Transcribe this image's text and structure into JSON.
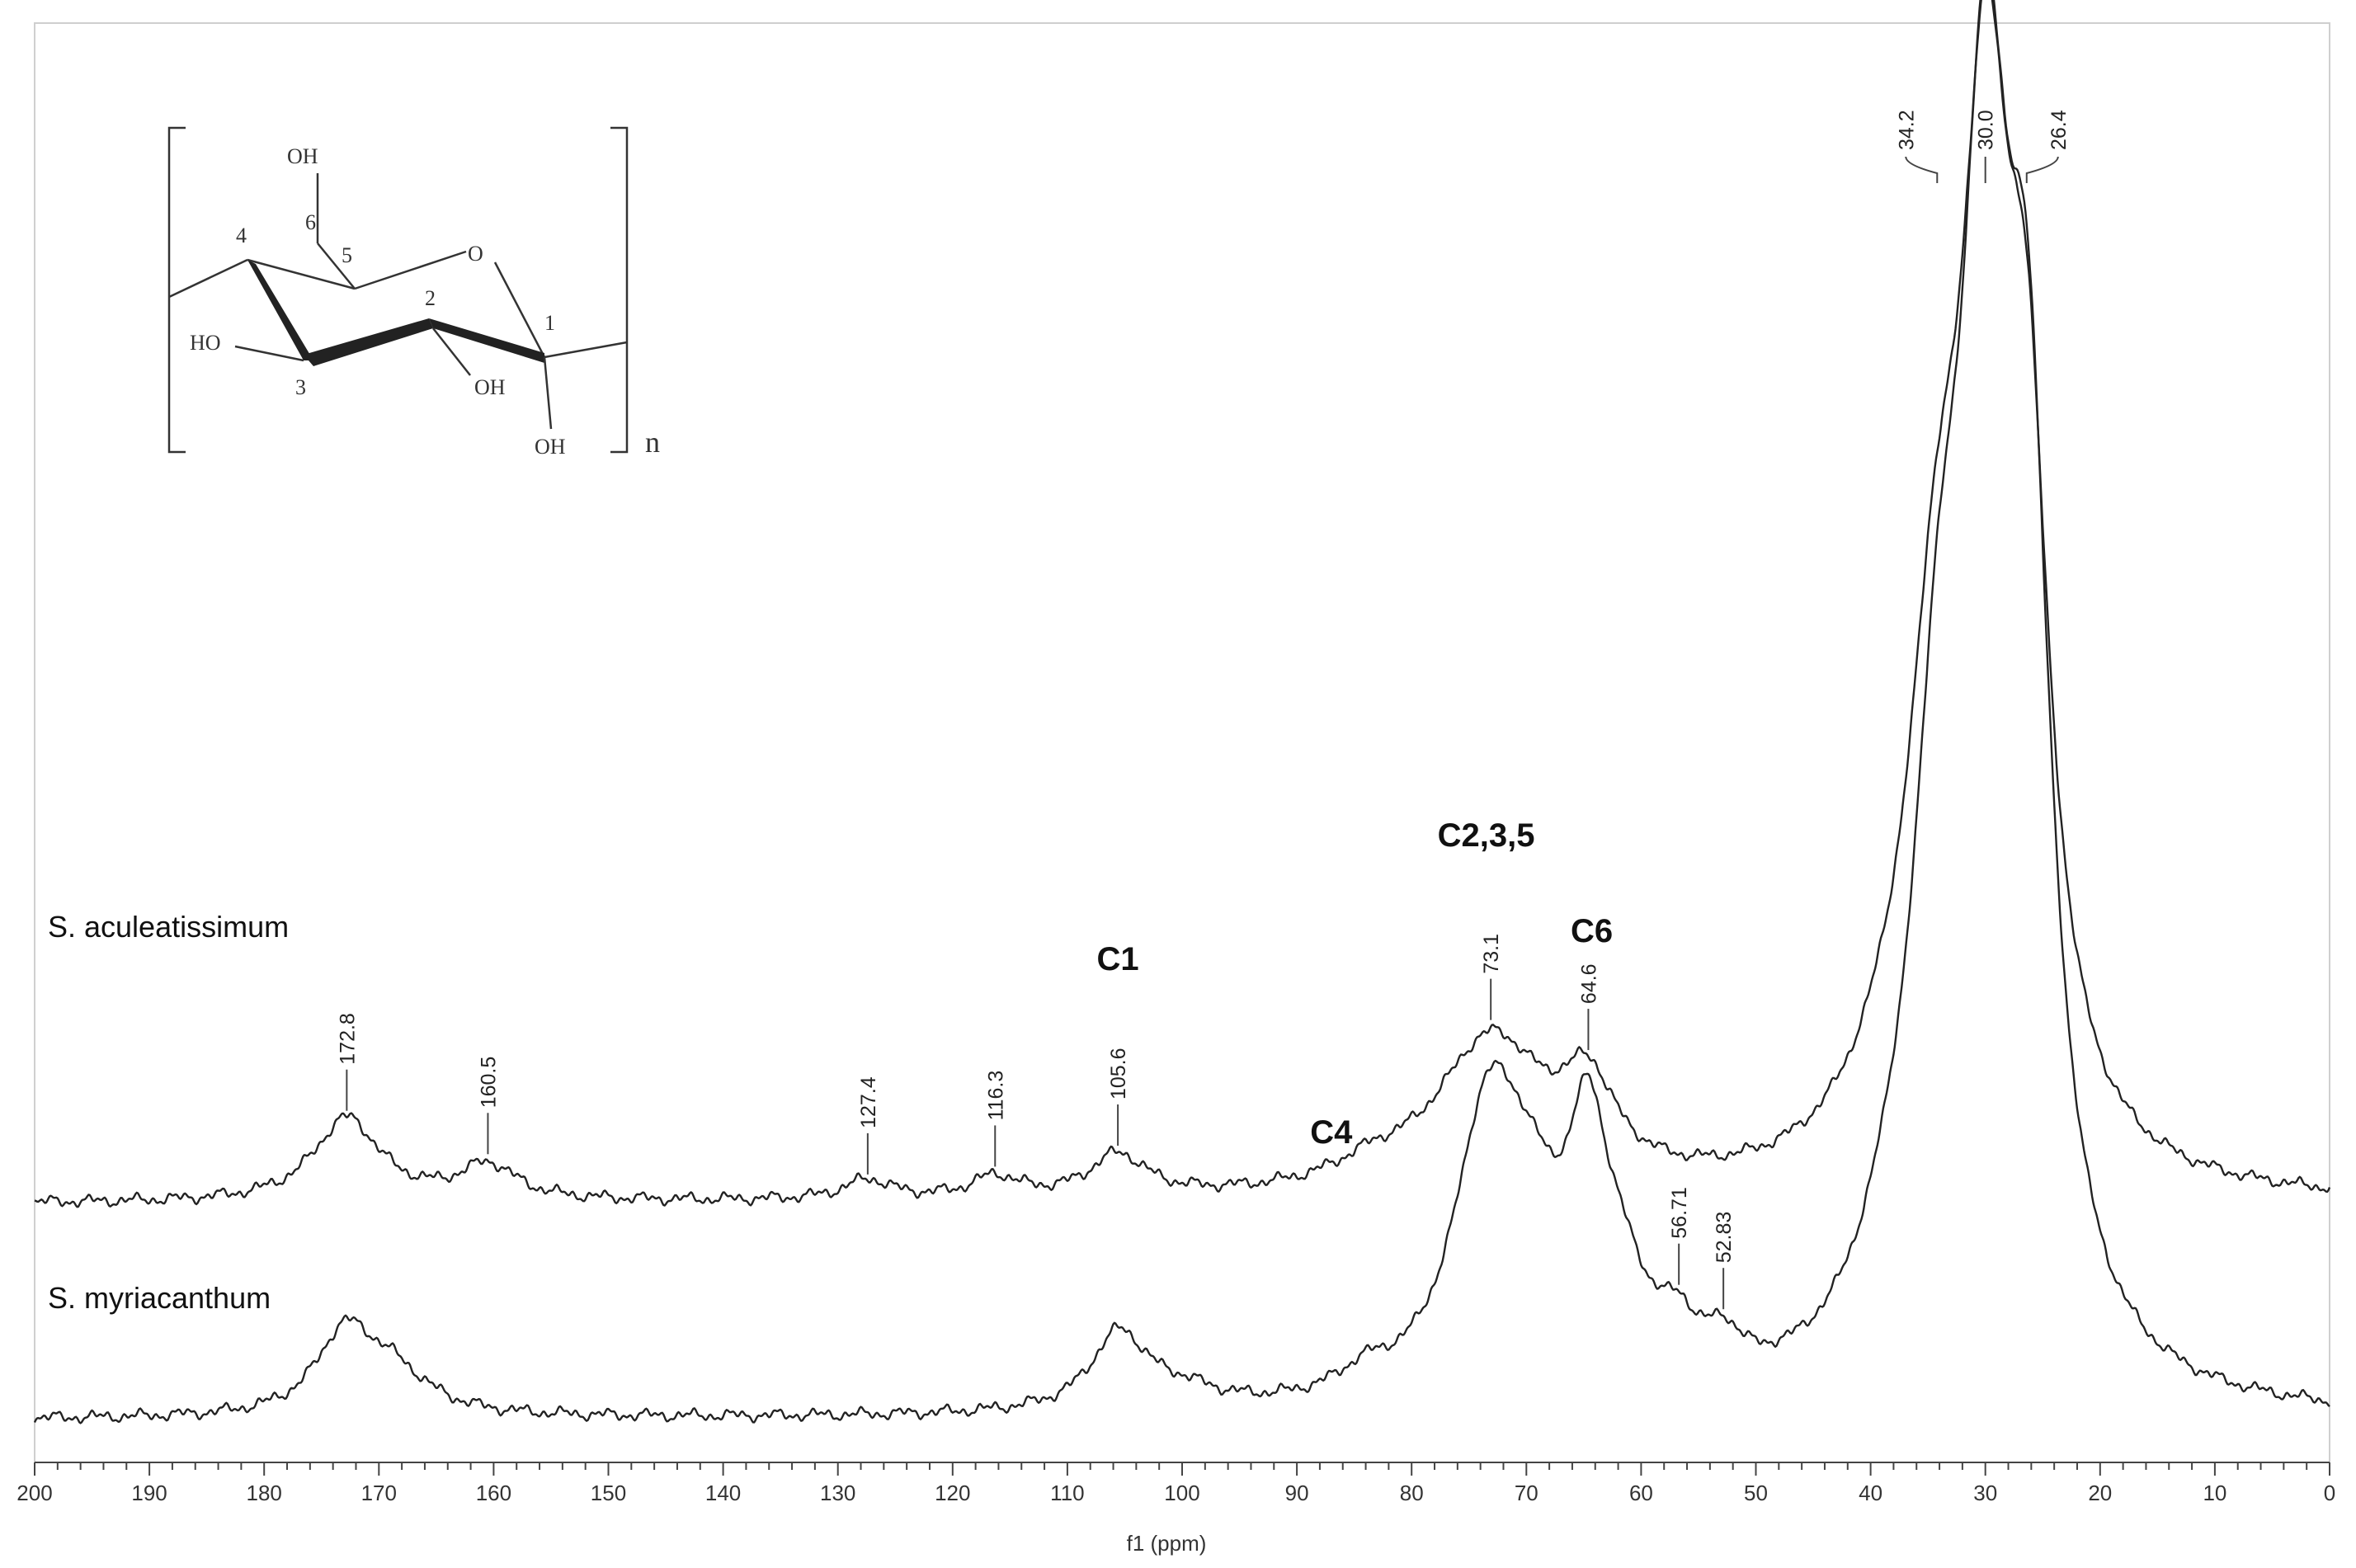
{
  "chart_data": {
    "type": "line",
    "xlabel": "f1 (ppm)",
    "xlim": [
      200,
      0
    ],
    "x_ticks": [
      200,
      190,
      180,
      170,
      160,
      150,
      140,
      130,
      120,
      110,
      100,
      90,
      80,
      70,
      60,
      50,
      40,
      30,
      20,
      10,
      0
    ],
    "x_tick_labels": [
      "200",
      "190",
      "180",
      "170",
      "160",
      "150",
      "140",
      "130",
      "120",
      "110",
      "100",
      "90",
      "80",
      "70",
      "60",
      "50",
      "40",
      "30",
      "20",
      "10",
      "0"
    ],
    "series": [
      {
        "name": "S. aculeatissimum",
        "peaks": [
          {
            "ppm": 172.8,
            "intensity": 0.06,
            "width": 3.5
          },
          {
            "ppm": 160.5,
            "intensity": 0.025,
            "width": 3.0
          },
          {
            "ppm": 127.4,
            "intensity": 0.014,
            "width": 2.5
          },
          {
            "ppm": 116.3,
            "intensity": 0.015,
            "width": 2.5
          },
          {
            "ppm": 105.6,
            "intensity": 0.03,
            "width": 3.0
          },
          {
            "ppm": 83.5,
            "intensity": 0.012,
            "width": 4.0
          },
          {
            "ppm": 73.1,
            "intensity": 0.11,
            "width": 6.0
          },
          {
            "ppm": 64.6,
            "intensity": 0.06,
            "width": 2.8
          },
          {
            "ppm": 34.2,
            "intensity": 0.3,
            "width": 3.0
          },
          {
            "ppm": 30.0,
            "intensity": 0.63,
            "width": 2.6
          },
          {
            "ppm": 26.4,
            "intensity": 0.42,
            "width": 2.4
          },
          {
            "ppm": 38.0,
            "intensity": 0.04,
            "width": 5.0
          }
        ]
      },
      {
        "name": "S. myriacanthum",
        "peaks": [
          {
            "ppm": 173.0,
            "intensity": 0.055,
            "width": 3.0
          },
          {
            "ppm": 169.0,
            "intensity": 0.03,
            "width": 4.0
          },
          {
            "ppm": 105.5,
            "intensity": 0.055,
            "width": 3.0
          },
          {
            "ppm": 100.0,
            "intensity": 0.012,
            "width": 4.0
          },
          {
            "ppm": 84.0,
            "intensity": 0.015,
            "width": 3.0
          },
          {
            "ppm": 73.5,
            "intensity": 0.17,
            "width": 3.5
          },
          {
            "ppm": 70.0,
            "intensity": 0.1,
            "width": 4.0
          },
          {
            "ppm": 64.6,
            "intensity": 0.15,
            "width": 2.2
          },
          {
            "ppm": 61.5,
            "intensity": 0.05,
            "width": 3.0
          },
          {
            "ppm": 56.71,
            "intensity": 0.03,
            "width": 1.8
          },
          {
            "ppm": 52.83,
            "intensity": 0.025,
            "width": 1.8
          },
          {
            "ppm": 34.0,
            "intensity": 0.35,
            "width": 2.8
          },
          {
            "ppm": 30.0,
            "intensity": 0.75,
            "width": 2.6
          },
          {
            "ppm": 26.3,
            "intensity": 0.55,
            "width": 2.4
          },
          {
            "ppm": 38.0,
            "intensity": 0.05,
            "width": 4.0
          }
        ]
      }
    ],
    "peak_labels": [
      {
        "series": 0,
        "ppm": 172.8,
        "text": "172.8"
      },
      {
        "series": 0,
        "ppm": 160.5,
        "text": "160.5"
      },
      {
        "series": 0,
        "ppm": 127.4,
        "text": "127.4"
      },
      {
        "series": 0,
        "ppm": 116.3,
        "text": "116.3"
      },
      {
        "series": 0,
        "ppm": 105.6,
        "text": "105.6"
      },
      {
        "series": 0,
        "ppm": 73.1,
        "text": "73.1"
      },
      {
        "series": 0,
        "ppm": 64.6,
        "text": "64.6"
      },
      {
        "series": 1,
        "ppm": 56.71,
        "text": "56.71"
      },
      {
        "series": 1,
        "ppm": 52.83,
        "text": "52.83"
      }
    ],
    "top_peak_labels": [
      {
        "ppm": 34.2,
        "text": "34.2"
      },
      {
        "ppm": 30.0,
        "text": "30.0"
      },
      {
        "ppm": 26.4,
        "text": "26.4"
      }
    ],
    "assignment_labels": [
      {
        "ppm": 105.6,
        "text": "C1"
      },
      {
        "ppm": 87.0,
        "text": "C4"
      },
      {
        "ppm": 73.5,
        "text": "C2,3,5"
      },
      {
        "ppm": 64.3,
        "text": "C6"
      }
    ],
    "structure": {
      "labels": [
        "OH",
        "6",
        "5",
        "4",
        "O",
        "2",
        "1",
        "HO",
        "3",
        "OH",
        "OH",
        "n"
      ]
    }
  }
}
